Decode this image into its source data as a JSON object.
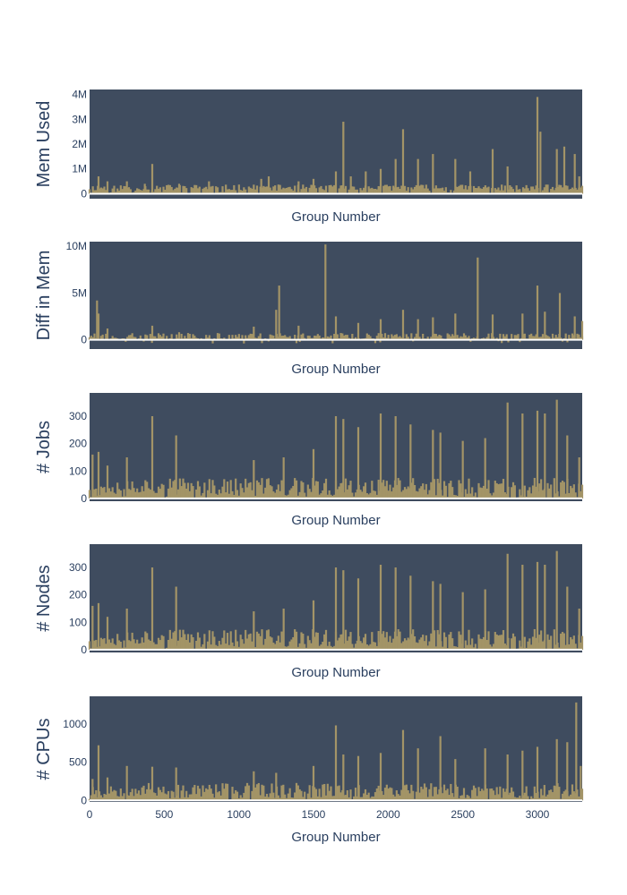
{
  "colors": {
    "plot_bg": "#3f4c5f",
    "bar": "#a39467",
    "zero_line": "#ffffff",
    "text": "#2a3f5f"
  },
  "chart_data": [
    {
      "type": "bar",
      "title": "",
      "xlabel": "Group Number",
      "ylabel": "Mem Used",
      "xlim": [
        0,
        3300
      ],
      "ylim": [
        -200000,
        4200000
      ],
      "yticks": [
        0,
        1000000,
        2000000,
        3000000,
        4000000
      ],
      "ytick_labels": [
        "0",
        "1M",
        "2M",
        "3M",
        "4M"
      ],
      "baseline": 0,
      "floor": 0,
      "base_level": 300000,
      "noise_amp": 250000,
      "seed": 11,
      "peaks": [
        [
          60,
          700000
        ],
        [
          120,
          500000
        ],
        [
          250,
          500000
        ],
        [
          370,
          400000
        ],
        [
          420,
          1200000
        ],
        [
          600,
          400000
        ],
        [
          800,
          500000
        ],
        [
          1150,
          600000
        ],
        [
          1200,
          700000
        ],
        [
          1400,
          500000
        ],
        [
          1500,
          600000
        ],
        [
          1650,
          900000
        ],
        [
          1700,
          2900000
        ],
        [
          1750,
          700000
        ],
        [
          1850,
          900000
        ],
        [
          1950,
          1000000
        ],
        [
          2050,
          1400000
        ],
        [
          2100,
          2600000
        ],
        [
          2200,
          1400000
        ],
        [
          2300,
          1600000
        ],
        [
          2450,
          1400000
        ],
        [
          2550,
          900000
        ],
        [
          2700,
          1800000
        ],
        [
          2800,
          1100000
        ],
        [
          3000,
          3900000
        ],
        [
          3020,
          2500000
        ],
        [
          3130,
          1800000
        ],
        [
          3180,
          1900000
        ],
        [
          3250,
          1600000
        ],
        [
          3280,
          700000
        ]
      ]
    },
    {
      "type": "bar",
      "title": "",
      "xlabel": "Group Number",
      "ylabel": "Diff in Mem",
      "xlim": [
        0,
        3300
      ],
      "ylim": [
        -1000000,
        10500000
      ],
      "yticks": [
        0,
        5000000,
        10000000
      ],
      "ytick_labels": [
        "0",
        "5M",
        "10M"
      ],
      "baseline": 0,
      "floor": -400000,
      "base_level": 300000,
      "noise_amp": 600000,
      "seed": 23,
      "peaks": [
        [
          50,
          4200000
        ],
        [
          60,
          2800000
        ],
        [
          120,
          1200000
        ],
        [
          420,
          1500000
        ],
        [
          600,
          800000
        ],
        [
          1100,
          1400000
        ],
        [
          1250,
          3200000
        ],
        [
          1270,
          5800000
        ],
        [
          1400,
          1500000
        ],
        [
          1580,
          10200000
        ],
        [
          1650,
          2500000
        ],
        [
          1800,
          1800000
        ],
        [
          1950,
          2200000
        ],
        [
          2100,
          3200000
        ],
        [
          2200,
          2200000
        ],
        [
          2300,
          2400000
        ],
        [
          2450,
          2800000
        ],
        [
          2600,
          8800000
        ],
        [
          2700,
          2700000
        ],
        [
          2900,
          2800000
        ],
        [
          3000,
          5800000
        ],
        [
          3050,
          3000000
        ],
        [
          3150,
          5000000
        ],
        [
          3250,
          2500000
        ],
        [
          3300,
          2000000
        ]
      ]
    },
    {
      "type": "bar",
      "title": "",
      "xlabel": "Group Number",
      "ylabel": "# Jobs",
      "xlim": [
        0,
        3300
      ],
      "ylim": [
        -10,
        385
      ],
      "yticks": [
        0,
        100,
        200,
        300
      ],
      "ytick_labels": [
        "0",
        "100",
        "200",
        "300"
      ],
      "baseline": 0,
      "floor": 0,
      "base_level": 40,
      "noise_amp": 60,
      "seed": 37,
      "peaks": [
        [
          20,
          160
        ],
        [
          60,
          170
        ],
        [
          120,
          120
        ],
        [
          250,
          150
        ],
        [
          420,
          300
        ],
        [
          580,
          230
        ],
        [
          1100,
          140
        ],
        [
          1300,
          150
        ],
        [
          1500,
          180
        ],
        [
          1650,
          300
        ],
        [
          1700,
          290
        ],
        [
          1800,
          260
        ],
        [
          1950,
          310
        ],
        [
          2050,
          300
        ],
        [
          2150,
          270
        ],
        [
          2300,
          250
        ],
        [
          2350,
          240
        ],
        [
          2500,
          210
        ],
        [
          2650,
          220
        ],
        [
          2800,
          350
        ],
        [
          2900,
          310
        ],
        [
          3000,
          320
        ],
        [
          3050,
          310
        ],
        [
          3130,
          360
        ],
        [
          3200,
          230
        ],
        [
          3280,
          150
        ]
      ]
    },
    {
      "type": "bar",
      "title": "",
      "xlabel": "Group Number",
      "ylabel": "# Nodes",
      "xlim": [
        0,
        3300
      ],
      "ylim": [
        -10,
        385
      ],
      "yticks": [
        0,
        100,
        200,
        300
      ],
      "ytick_labels": [
        "0",
        "100",
        "200",
        "300"
      ],
      "baseline": 0,
      "floor": 0,
      "base_level": 40,
      "noise_amp": 60,
      "seed": 37,
      "peaks": [
        [
          20,
          160
        ],
        [
          60,
          170
        ],
        [
          120,
          120
        ],
        [
          250,
          150
        ],
        [
          420,
          300
        ],
        [
          580,
          230
        ],
        [
          1100,
          140
        ],
        [
          1300,
          150
        ],
        [
          1500,
          180
        ],
        [
          1650,
          300
        ],
        [
          1700,
          290
        ],
        [
          1800,
          260
        ],
        [
          1950,
          310
        ],
        [
          2050,
          300
        ],
        [
          2150,
          270
        ],
        [
          2300,
          250
        ],
        [
          2350,
          240
        ],
        [
          2500,
          210
        ],
        [
          2650,
          220
        ],
        [
          2800,
          350
        ],
        [
          2900,
          310
        ],
        [
          3000,
          320
        ],
        [
          3050,
          310
        ],
        [
          3130,
          360
        ],
        [
          3200,
          230
        ],
        [
          3280,
          150
        ]
      ]
    },
    {
      "type": "bar",
      "title": "",
      "xlabel": "Group Number",
      "ylabel": "# CPUs",
      "xlim": [
        0,
        3300
      ],
      "ylim": [
        -20,
        1360
      ],
      "yticks": [
        0,
        500,
        1000
      ],
      "ytick_labels": [
        "0",
        "500",
        "1000"
      ],
      "xticks": [
        0,
        500,
        1000,
        1500,
        2000,
        2500,
        3000
      ],
      "xtick_labels": [
        "0",
        "500",
        "1000",
        "1500",
        "2000",
        "2500",
        "3000"
      ],
      "baseline": 0,
      "floor": 0,
      "base_level": 120,
      "noise_amp": 180,
      "seed": 53,
      "peaks": [
        [
          20,
          280
        ],
        [
          60,
          720
        ],
        [
          120,
          300
        ],
        [
          250,
          450
        ],
        [
          420,
          440
        ],
        [
          580,
          430
        ],
        [
          1100,
          380
        ],
        [
          1250,
          360
        ],
        [
          1500,
          450
        ],
        [
          1650,
          980
        ],
        [
          1700,
          600
        ],
        [
          1800,
          580
        ],
        [
          1950,
          620
        ],
        [
          2100,
          920
        ],
        [
          2200,
          680
        ],
        [
          2350,
          840
        ],
        [
          2450,
          540
        ],
        [
          2650,
          680
        ],
        [
          2800,
          600
        ],
        [
          2900,
          650
        ],
        [
          3000,
          700
        ],
        [
          3130,
          800
        ],
        [
          3200,
          760
        ],
        [
          3260,
          1280
        ],
        [
          3290,
          450
        ]
      ]
    }
  ]
}
